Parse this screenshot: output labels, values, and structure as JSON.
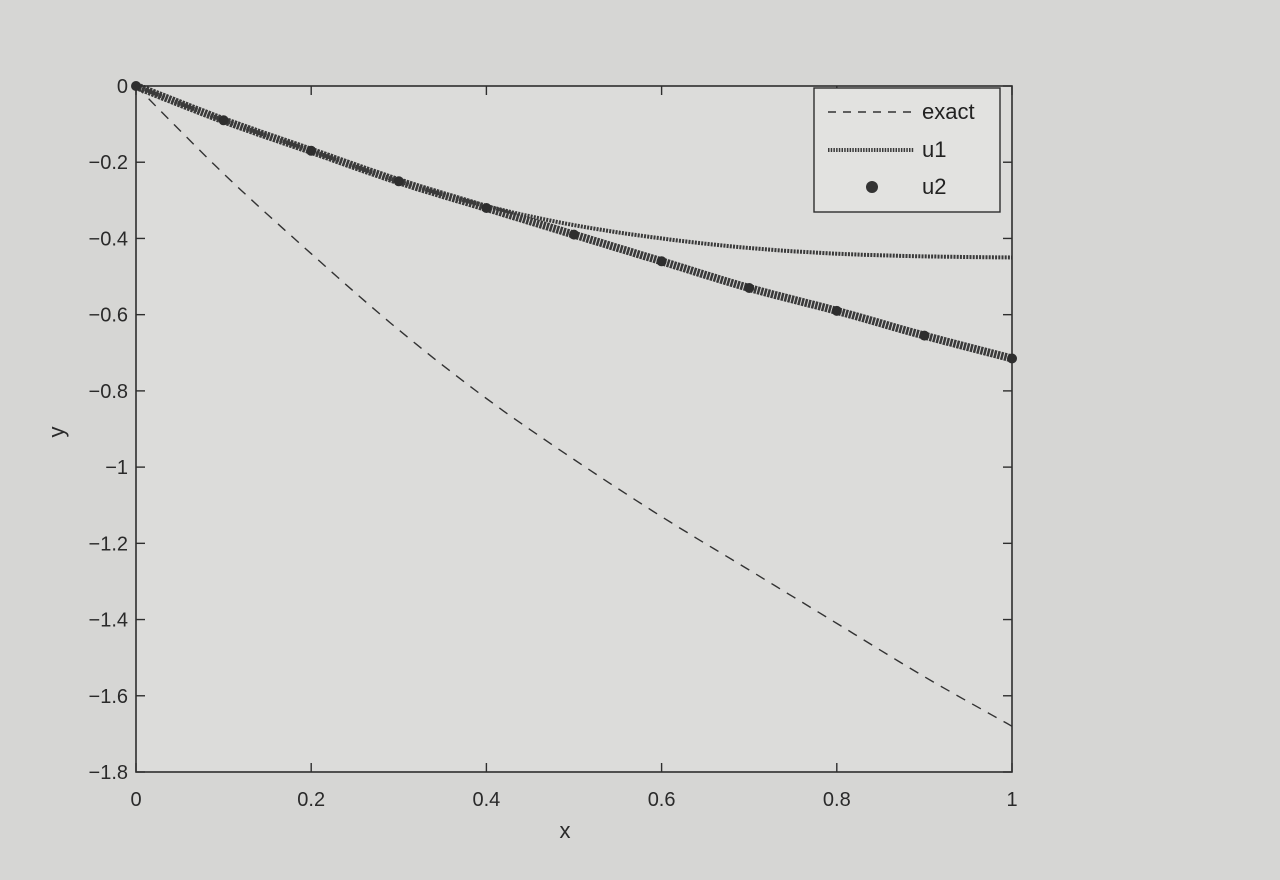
{
  "chart_data": {
    "type": "line",
    "title": "",
    "xlabel": "x",
    "ylabel": "y",
    "xlim": [
      0,
      1
    ],
    "ylim": [
      -1.8,
      0
    ],
    "xticks": [
      0,
      0.2,
      0.4,
      0.6,
      0.8,
      1
    ],
    "xtick_labels": [
      "0",
      "0.2",
      "0.4",
      "0.6",
      "0.8",
      "1"
    ],
    "yticks": [
      0,
      -0.2,
      -0.4,
      -0.6,
      -0.8,
      -1,
      -1.2,
      -1.4,
      -1.6,
      -1.8
    ],
    "ytick_labels": [
      "0",
      "−0.2",
      "−0.4",
      "−0.6",
      "−0.8",
      "−1",
      "−1.2",
      "−1.4",
      "−1.6",
      "−1.8"
    ],
    "grid": false,
    "legend_position": "top-right",
    "series": [
      {
        "name": "exact",
        "style": "dashed",
        "color": "#333333",
        "x": [
          0,
          0.1,
          0.2,
          0.3,
          0.4,
          0.5,
          0.6,
          0.7,
          0.8,
          0.9,
          1.0
        ],
        "y": [
          0,
          -0.23,
          -0.44,
          -0.64,
          -0.82,
          -0.98,
          -1.13,
          -1.27,
          -1.41,
          -1.55,
          -1.68
        ]
      },
      {
        "name": "u1",
        "style": "solid-dotted",
        "color": "#3a3a3a",
        "x": [
          0,
          0.1,
          0.2,
          0.3,
          0.4,
          0.5,
          0.6,
          0.7,
          0.8,
          0.9,
          1.0
        ],
        "y": [
          0,
          -0.09,
          -0.17,
          -0.25,
          -0.315,
          -0.365,
          -0.4,
          -0.425,
          -0.44,
          -0.447,
          -0.45
        ]
      },
      {
        "name": "u2",
        "style": "markers",
        "color": "#3a3a3a",
        "x": [
          0,
          0.1,
          0.2,
          0.3,
          0.4,
          0.5,
          0.6,
          0.7,
          0.8,
          0.9,
          1.0
        ],
        "y": [
          0,
          -0.09,
          -0.17,
          -0.25,
          -0.32,
          -0.39,
          -0.46,
          -0.53,
          -0.59,
          -0.655,
          -0.715
        ]
      }
    ]
  }
}
